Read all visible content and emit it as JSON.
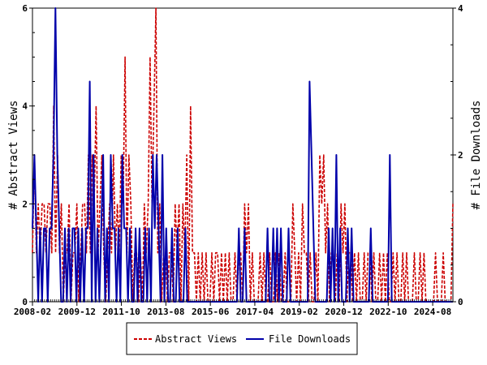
{
  "chart_data": {
    "type": "line",
    "xlabel": "",
    "x_ticks": [
      "2008-02",
      "2009-12",
      "2011-10",
      "2013-08",
      "2015-06",
      "2017-04",
      "2019-02",
      "2020-12",
      "2022-10",
      "2024-08"
    ],
    "left_axis": {
      "label": "# Abstract Views",
      "ylim": [
        0,
        6
      ],
      "ticks": [
        "0",
        "2",
        "4",
        "6"
      ]
    },
    "right_axis": {
      "label": "# File Downloads",
      "ylim": [
        0,
        4
      ],
      "ticks": [
        "0",
        "2",
        "4"
      ]
    },
    "x_range": [
      "2008-02",
      "2025-06"
    ],
    "legend_position": "bottom-center",
    "grid": false,
    "series": [
      {
        "name": "Abstract Views",
        "axis": "left",
        "color": "#cc0000",
        "style": "dashed",
        "values": [
          1,
          3,
          1,
          2,
          1,
          2,
          2,
          1,
          2,
          2,
          1,
          4,
          1,
          3,
          1,
          2,
          0,
          1,
          1,
          2,
          0,
          1,
          1,
          2,
          0,
          1,
          2,
          2,
          1,
          3,
          1,
          3,
          2,
          4,
          1,
          2,
          3,
          1,
          0,
          1,
          2,
          1,
          3,
          1,
          2,
          1,
          3,
          2,
          5,
          1,
          3,
          2,
          0,
          1,
          1,
          0,
          1,
          0,
          2,
          1,
          2,
          5,
          2,
          4,
          6,
          1,
          2,
          0,
          1,
          1,
          0,
          1,
          1,
          0,
          2,
          1,
          2,
          0,
          2,
          1,
          3,
          0,
          4,
          1,
          1,
          0,
          1,
          0,
          1,
          0,
          1,
          0,
          0,
          1,
          0,
          1,
          1,
          0,
          1,
          0,
          1,
          0,
          1,
          0,
          0,
          1,
          0,
          1,
          1,
          0,
          2,
          1,
          2,
          0,
          1,
          0,
          0,
          0,
          1,
          0,
          1,
          0,
          0,
          1,
          0,
          0,
          1,
          0,
          1,
          0,
          0,
          1,
          0,
          0,
          0,
          2,
          1,
          0,
          1,
          0,
          2,
          1,
          1,
          0,
          1,
          0,
          0,
          1,
          0,
          3,
          2,
          3,
          1,
          2,
          0,
          1,
          1,
          0,
          1,
          0,
          2,
          1,
          2,
          0,
          1,
          1,
          0,
          1,
          0,
          1,
          0,
          0,
          1,
          0,
          1,
          1,
          0,
          1,
          0,
          0,
          1,
          0,
          1,
          0,
          1,
          0,
          0,
          1,
          0,
          1,
          0,
          0,
          1,
          0,
          1,
          0,
          0,
          0,
          1,
          0,
          0,
          1,
          0,
          1,
          0,
          0,
          0,
          0,
          0,
          1,
          0,
          0,
          0,
          1,
          0,
          0,
          0,
          0,
          2
        ]
      },
      {
        "name": "File Downloads",
        "axis": "right",
        "color": "#0000aa",
        "style": "solid",
        "values": [
          1,
          2,
          1,
          0,
          1,
          0,
          1,
          1,
          0,
          1,
          1,
          2,
          4,
          2,
          1,
          0,
          0,
          1,
          0,
          1,
          0,
          1,
          1,
          0,
          1,
          0,
          1,
          0,
          1,
          1,
          3,
          0,
          2,
          0,
          1,
          0,
          1,
          2,
          0,
          1,
          0,
          2,
          1,
          1,
          0,
          1,
          0,
          2,
          1,
          1,
          0,
          1,
          0,
          0,
          1,
          0,
          1,
          0,
          0,
          1,
          0,
          1,
          0,
          2,
          1,
          2,
          1,
          0,
          2,
          0,
          1,
          0,
          0,
          1,
          0,
          0,
          1,
          0,
          0,
          0,
          1,
          0,
          0,
          0,
          0,
          0,
          0,
          0,
          0,
          0,
          0,
          0,
          0,
          0,
          0,
          0,
          0,
          0,
          0,
          0,
          0,
          0,
          0,
          0,
          0,
          0,
          0,
          0,
          1,
          0,
          0,
          1,
          0,
          0,
          0,
          0,
          0,
          0,
          0,
          0,
          0,
          0,
          0,
          1,
          0,
          0,
          1,
          0,
          1,
          0,
          1,
          0,
          0,
          0,
          1,
          0,
          0,
          0,
          0,
          0,
          0,
          0,
          0,
          0,
          0,
          3,
          2,
          1,
          0,
          0,
          0,
          0,
          0,
          0,
          0,
          1,
          0,
          1,
          0,
          2,
          0,
          1,
          0,
          0,
          0,
          1,
          0,
          1,
          0,
          0,
          0,
          0,
          0,
          0,
          0,
          0,
          0,
          1,
          0,
          0,
          0,
          0,
          0,
          0,
          0,
          0,
          0,
          2,
          0,
          0,
          0,
          0,
          0,
          0,
          0,
          0,
          0,
          0,
          0,
          0,
          0,
          0,
          0,
          0,
          0,
          0,
          0,
          0,
          0,
          0,
          0,
          0,
          0,
          0,
          0,
          0,
          0,
          0,
          0,
          0,
          0
        ]
      }
    ]
  }
}
